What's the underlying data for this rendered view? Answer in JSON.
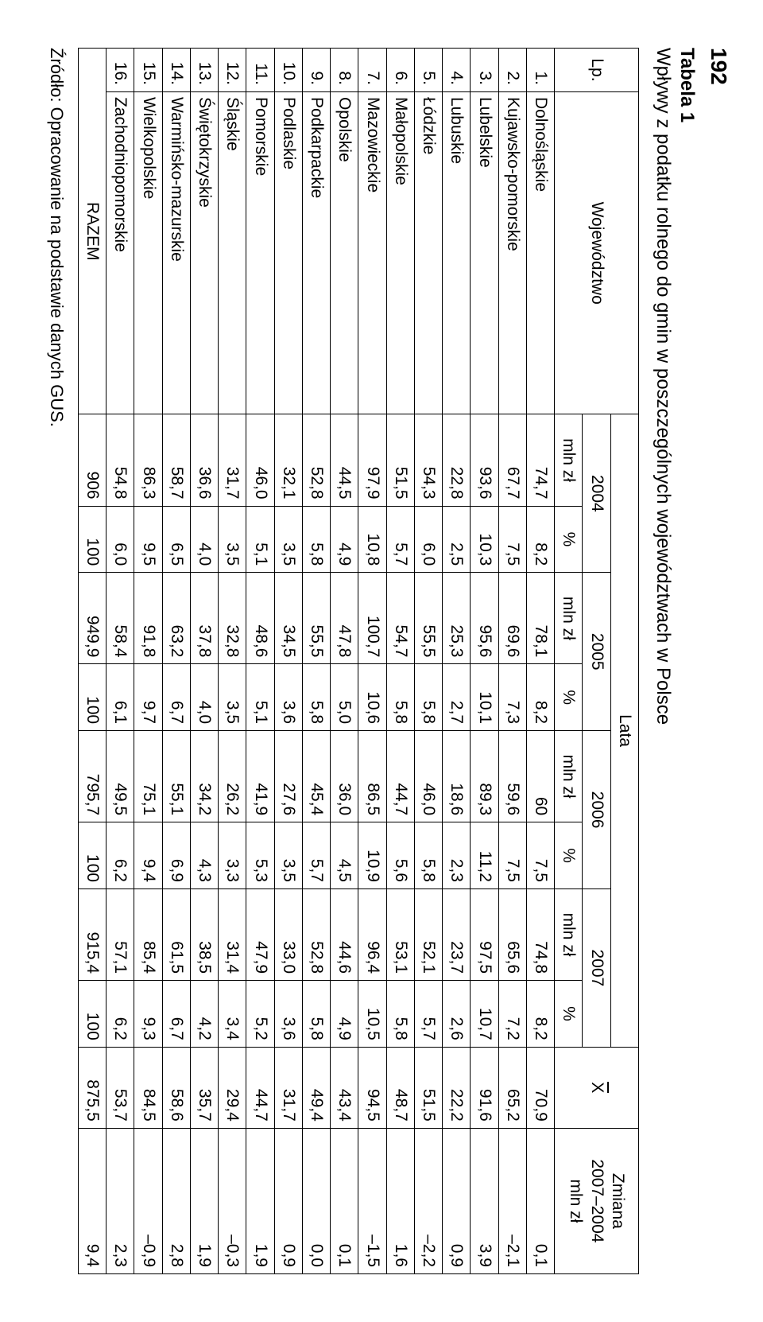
{
  "page_number": "192",
  "table_label": "Tabela 1",
  "table_caption": "Wpływy z podatku rolnego do gmin w poszczególnych województwach w Polsce",
  "header": {
    "lp": "Lp.",
    "wojewodztwo": "Województwo",
    "lata": "Lata",
    "xbar_letter": "X",
    "zmiana_line1": "Zmiana",
    "zmiana_line2": "2007–2004",
    "zmiana_line3": "mln zł",
    "years": [
      "2004",
      "2005",
      "2006",
      "2007"
    ],
    "mln": "mln zł",
    "pct": "%"
  },
  "rows": [
    {
      "lp": "1.",
      "name": "Dolnośląskie",
      "m04": "74,7",
      "p04": "8,2",
      "m05": "78,1",
      "p05": "8,2",
      "m06": "60",
      "p06": "7,5",
      "m07": "74,8",
      "p07": "8,2",
      "xbar": "70,9",
      "zm": "0,1"
    },
    {
      "lp": "2.",
      "name": "Kujawsko-pomorskie",
      "m04": "67,7",
      "p04": "7,5",
      "m05": "69,6",
      "p05": "7,3",
      "m06": "59,6",
      "p06": "7,5",
      "m07": "65,6",
      "p07": "7,2",
      "xbar": "65,2",
      "zm": "–2,1"
    },
    {
      "lp": "3.",
      "name": "Lubelskie",
      "m04": "93,6",
      "p04": "10,3",
      "m05": "95,6",
      "p05": "10,1",
      "m06": "89,3",
      "p06": "11,2",
      "m07": "97,5",
      "p07": "10,7",
      "xbar": "91,6",
      "zm": "3,9"
    },
    {
      "lp": "4.",
      "name": "Lubuskie",
      "m04": "22,8",
      "p04": "2,5",
      "m05": "25,3",
      "p05": "2,7",
      "m06": "18,6",
      "p06": "2,3",
      "m07": "23,7",
      "p07": "2,6",
      "xbar": "22,2",
      "zm": "0,9"
    },
    {
      "lp": "5.",
      "name": "Łódzkie",
      "m04": "54,3",
      "p04": "6,0",
      "m05": "55,5",
      "p05": "5,8",
      "m06": "46,0",
      "p06": "5,8",
      "m07": "52,1",
      "p07": "5,7",
      "xbar": "51,5",
      "zm": "–2,2"
    },
    {
      "lp": "6.",
      "name": "Małopolskie",
      "m04": "51,5",
      "p04": "5,7",
      "m05": "54,7",
      "p05": "5,8",
      "m06": "44,7",
      "p06": "5,6",
      "m07": "53,1",
      "p07": "5,8",
      "xbar": "48,7",
      "zm": "1,6"
    },
    {
      "lp": "7.",
      "name": "Mazowieckie",
      "m04": "97,9",
      "p04": "10,8",
      "m05": "100,7",
      "p05": "10,6",
      "m06": "86,5",
      "p06": "10,9",
      "m07": "96,4",
      "p07": "10,5",
      "xbar": "94,5",
      "zm": "–1,5"
    },
    {
      "lp": "8.",
      "name": "Opolskie",
      "m04": "44,5",
      "p04": "4,9",
      "m05": "47,8",
      "p05": "5,0",
      "m06": "36,0",
      "p06": "4,5",
      "m07": "44,6",
      "p07": "4,9",
      "xbar": "43,4",
      "zm": "0,1"
    },
    {
      "lp": "9.",
      "name": "Podkarpackie",
      "m04": "52,8",
      "p04": "5,8",
      "m05": "55,5",
      "p05": "5,8",
      "m06": "45,4",
      "p06": "5,7",
      "m07": "52,8",
      "p07": "5,8",
      "xbar": "49,4",
      "zm": "0,0"
    },
    {
      "lp": "10.",
      "name": "Podlaskie",
      "m04": "32,1",
      "p04": "3,5",
      "m05": "34,5",
      "p05": "3,6",
      "m06": "27,6",
      "p06": "3,5",
      "m07": "33,0",
      "p07": "3,6",
      "xbar": "31,7",
      "zm": "0,9"
    },
    {
      "lp": "11.",
      "name": "Pomorskie",
      "m04": "46,0",
      "p04": "5,1",
      "m05": "48,6",
      "p05": "5,1",
      "m06": "41,9",
      "p06": "5,3",
      "m07": "47,9",
      "p07": "5,2",
      "xbar": "44,7",
      "zm": "1,9"
    },
    {
      "lp": "12.",
      "name": "Śląskie",
      "m04": "31,7",
      "p04": "3,5",
      "m05": "32,8",
      "p05": "3,5",
      "m06": "26,2",
      "p06": "3,3",
      "m07": "31,4",
      "p07": "3,4",
      "xbar": "29,4",
      "zm": "–0,3"
    },
    {
      "lp": "13.",
      "name": "Świętokrzyskie",
      "m04": "36,6",
      "p04": "4,0",
      "m05": "37,8",
      "p05": "4,0",
      "m06": "34,2",
      "p06": "4,3",
      "m07": "38,5",
      "p07": "4,2",
      "xbar": "35,7",
      "zm": "1,9"
    },
    {
      "lp": "14.",
      "name": "Warmińsko-mazurskie",
      "m04": "58,7",
      "p04": "6,5",
      "m05": "63,2",
      "p05": "6,7",
      "m06": "55,1",
      "p06": "6,9",
      "m07": "61,5",
      "p07": "6,7",
      "xbar": "58,6",
      "zm": "2,8"
    },
    {
      "lp": "15.",
      "name": "Wielkopolskie",
      "m04": "86,3",
      "p04": "9,5",
      "m05": "91,8",
      "p05": "9,7",
      "m06": "75,1",
      "p06": "9,4",
      "m07": "85,4",
      "p07": "9,3",
      "xbar": "84,5",
      "zm": "–0,9"
    },
    {
      "lp": "16.",
      "name": "Zachodniopomorskie",
      "m04": "54,8",
      "p04": "6,0",
      "m05": "58,4",
      "p05": "6,1",
      "m06": "49,5",
      "p06": "6,2",
      "m07": "57,1",
      "p07": "6,2",
      "xbar": "53,7",
      "zm": "2,3"
    }
  ],
  "total": {
    "label": "RAZEM",
    "m04": "906",
    "p04": "100",
    "m05": "949,9",
    "p05": "100",
    "m06": "795,7",
    "p06": "100",
    "m07": "915,4",
    "p07": "100",
    "xbar": "875,5",
    "zm": "9,4"
  },
  "source": "Źródło: Opracowanie na podstawie danych GUS."
}
